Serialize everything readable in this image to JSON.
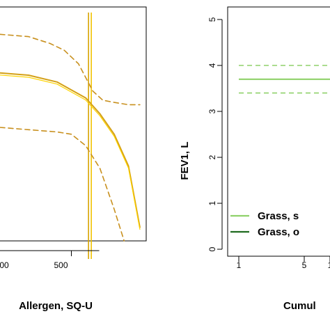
{
  "chart_data": [
    {
      "type": "line",
      "xlabel": "Allergen, SQ-U",
      "ylabel": "",
      "x_ticks": [
        "500"
      ],
      "x_ticks_partial": [
        "00"
      ],
      "xlim": [
        0,
        1000
      ],
      "ylim": [
        0,
        1
      ],
      "series": [
        {
          "role": "estimate",
          "color": "#d4a017",
          "x": [
            0,
            200,
            400,
            600,
            700,
            800,
            900,
            980
          ],
          "y": [
            0.74,
            0.73,
            0.7,
            0.63,
            0.56,
            0.47,
            0.33,
            0.06
          ]
        },
        {
          "role": "estimate-highlight",
          "color": "#ffd400",
          "x": [
            0,
            200,
            400,
            600,
            700,
            800,
            900,
            980
          ],
          "y": [
            0.74,
            0.73,
            0.7,
            0.63,
            0.56,
            0.47,
            0.33,
            0.06
          ]
        },
        {
          "role": "upper-ci",
          "color": "#c8901e",
          "dashed": true,
          "x": [
            0,
            200,
            350,
            450,
            550,
            650,
            720,
            800,
            900,
            980
          ],
          "y": [
            0.91,
            0.9,
            0.87,
            0.84,
            0.78,
            0.66,
            0.62,
            0.61,
            0.6,
            0.6
          ]
        },
        {
          "role": "lower-ci",
          "color": "#c8901e",
          "dashed": true,
          "x": [
            0,
            200,
            400,
            500,
            600,
            700,
            800,
            870
          ],
          "y": [
            0.5,
            0.49,
            0.48,
            0.47,
            0.42,
            0.32,
            0.14,
            0.0
          ]
        }
      ],
      "vline": {
        "x": 630,
        "color": "#e6b800"
      }
    },
    {
      "type": "line",
      "ylabel": "FEV1, L",
      "xlabel": "Cumul",
      "x_ticks": [
        "1",
        "5",
        "1"
      ],
      "y_ticks": [
        "0",
        "1",
        "2",
        "3",
        "4",
        "5"
      ],
      "ylim": [
        0,
        5
      ],
      "series": [
        {
          "name": "Grass, s",
          "color": "#8fd16a",
          "x": [
            1,
            10
          ],
          "y": [
            3.7,
            3.7
          ],
          "ci_upper": [
            4.0,
            4.0
          ],
          "ci_lower": [
            3.4,
            3.4
          ]
        },
        {
          "name": "Grass, o",
          "color": "#1f6b1f",
          "x": [],
          "y": []
        }
      ]
    }
  ]
}
